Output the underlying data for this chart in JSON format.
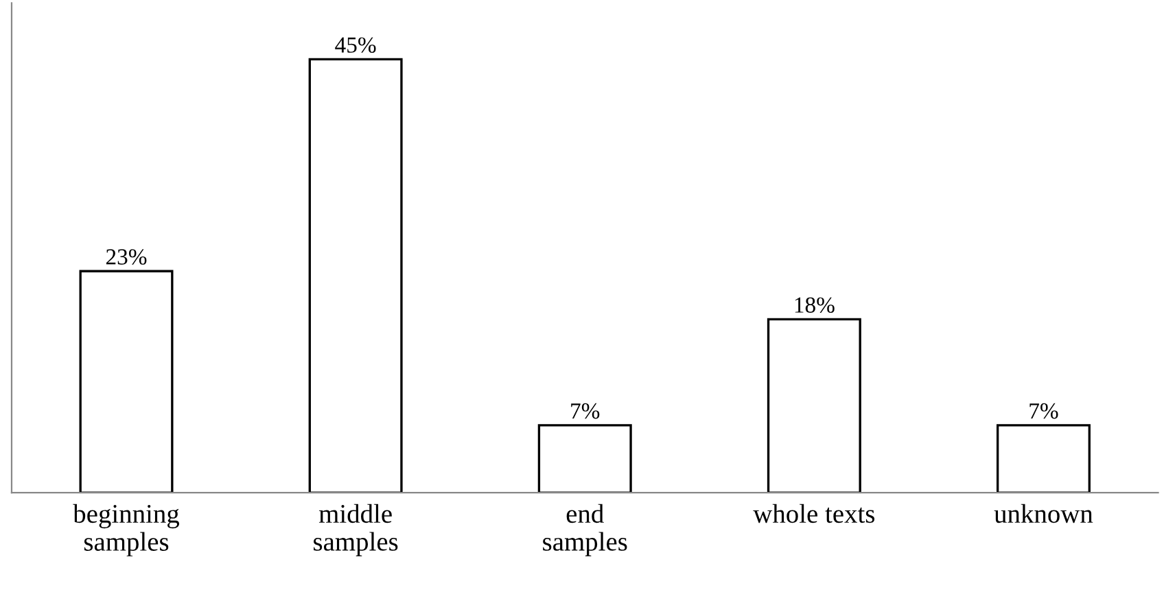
{
  "chart_data": {
    "type": "bar",
    "categories": [
      "beginning\nsamples",
      "middle\nsamples",
      "end\nsamples",
      "whole texts",
      "unknown"
    ],
    "values": [
      23,
      45,
      7,
      18,
      7
    ],
    "value_labels": [
      "23%",
      "45%",
      "7%",
      "18%",
      "7%"
    ],
    "color": "#ffffff",
    "grid": false,
    "legend": false
  }
}
